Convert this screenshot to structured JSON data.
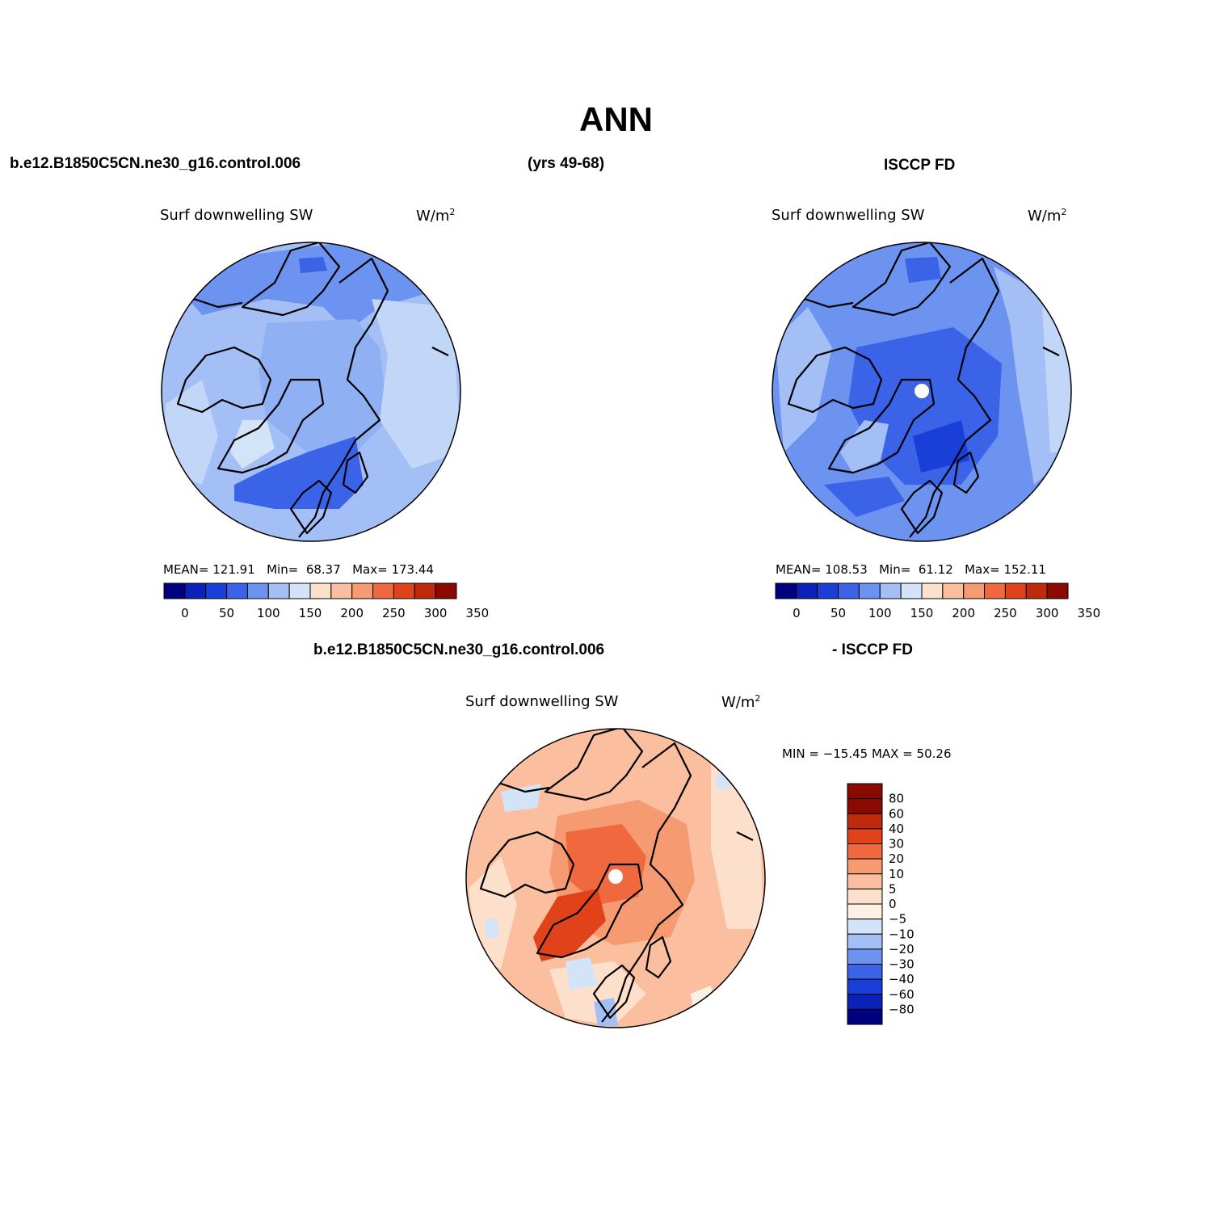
{
  "figure": {
    "title": "ANN",
    "case_label": "b.e12.B1850C5CN.ne30_g16.control.006",
    "years_label": "(yrs 49-68)",
    "obs_label": "ISCCP FD",
    "diff_case_label": "b.e12.B1850C5CN.ne30_g16.control.006",
    "diff_obs_label": "- ISCCP FD"
  },
  "panels": [
    {
      "name": "model",
      "variable": "Surf downwelling SW",
      "units": "W/m",
      "units_exp": "2",
      "stats": {
        "mean_label": "MEAN=",
        "mean": "121.91",
        "min_label": "Min=",
        "min": "68.37",
        "max_label": "Max=",
        "max": "173.44"
      },
      "colorbar_ticks": [
        "0",
        "50",
        "100",
        "150",
        "200",
        "250",
        "300",
        "350"
      ]
    },
    {
      "name": "obs",
      "variable": "Surf downwelling SW",
      "units": "W/m",
      "units_exp": "2",
      "stats": {
        "mean_label": "MEAN=",
        "mean": "108.53",
        "min_label": "Min=",
        "min": "61.12",
        "max_label": "Max=",
        "max": "152.11"
      },
      "colorbar_ticks": [
        "0",
        "50",
        "100",
        "150",
        "200",
        "250",
        "300",
        "350"
      ]
    },
    {
      "name": "difference",
      "variable": "Surf downwelling SW",
      "units": "W/m",
      "units_exp": "2",
      "stats_text": "MIN = −15.45  MAX =   50.26",
      "colorbar_ticks": [
        "80",
        "60",
        "40",
        "30",
        "20",
        "10",
        "5",
        "0",
        "−5",
        "−10",
        "−20",
        "−30",
        "−40",
        "−60",
        "−80"
      ]
    }
  ],
  "colors": {
    "abs_scale": [
      "#000080",
      "#0a22b8",
      "#1a3fd8",
      "#3a63e8",
      "#6d93f0",
      "#a3bff5",
      "#d3e3f8",
      "#fde0cc",
      "#fbbfa0",
      "#f69a72",
      "#f0683e",
      "#e0431a",
      "#c02a0c",
      "#8b0a00"
    ],
    "diff_scale": [
      "#8b0a00",
      "#c02a0c",
      "#e0431a",
      "#f0683e",
      "#f69a72",
      "#fbbfa0",
      "#fde0cc",
      "#fdf1e6",
      "#d3e3f8",
      "#a3bff5",
      "#6d93f0",
      "#3a63e8",
      "#1a3fd8",
      "#0a22b8",
      "#000080"
    ]
  }
}
